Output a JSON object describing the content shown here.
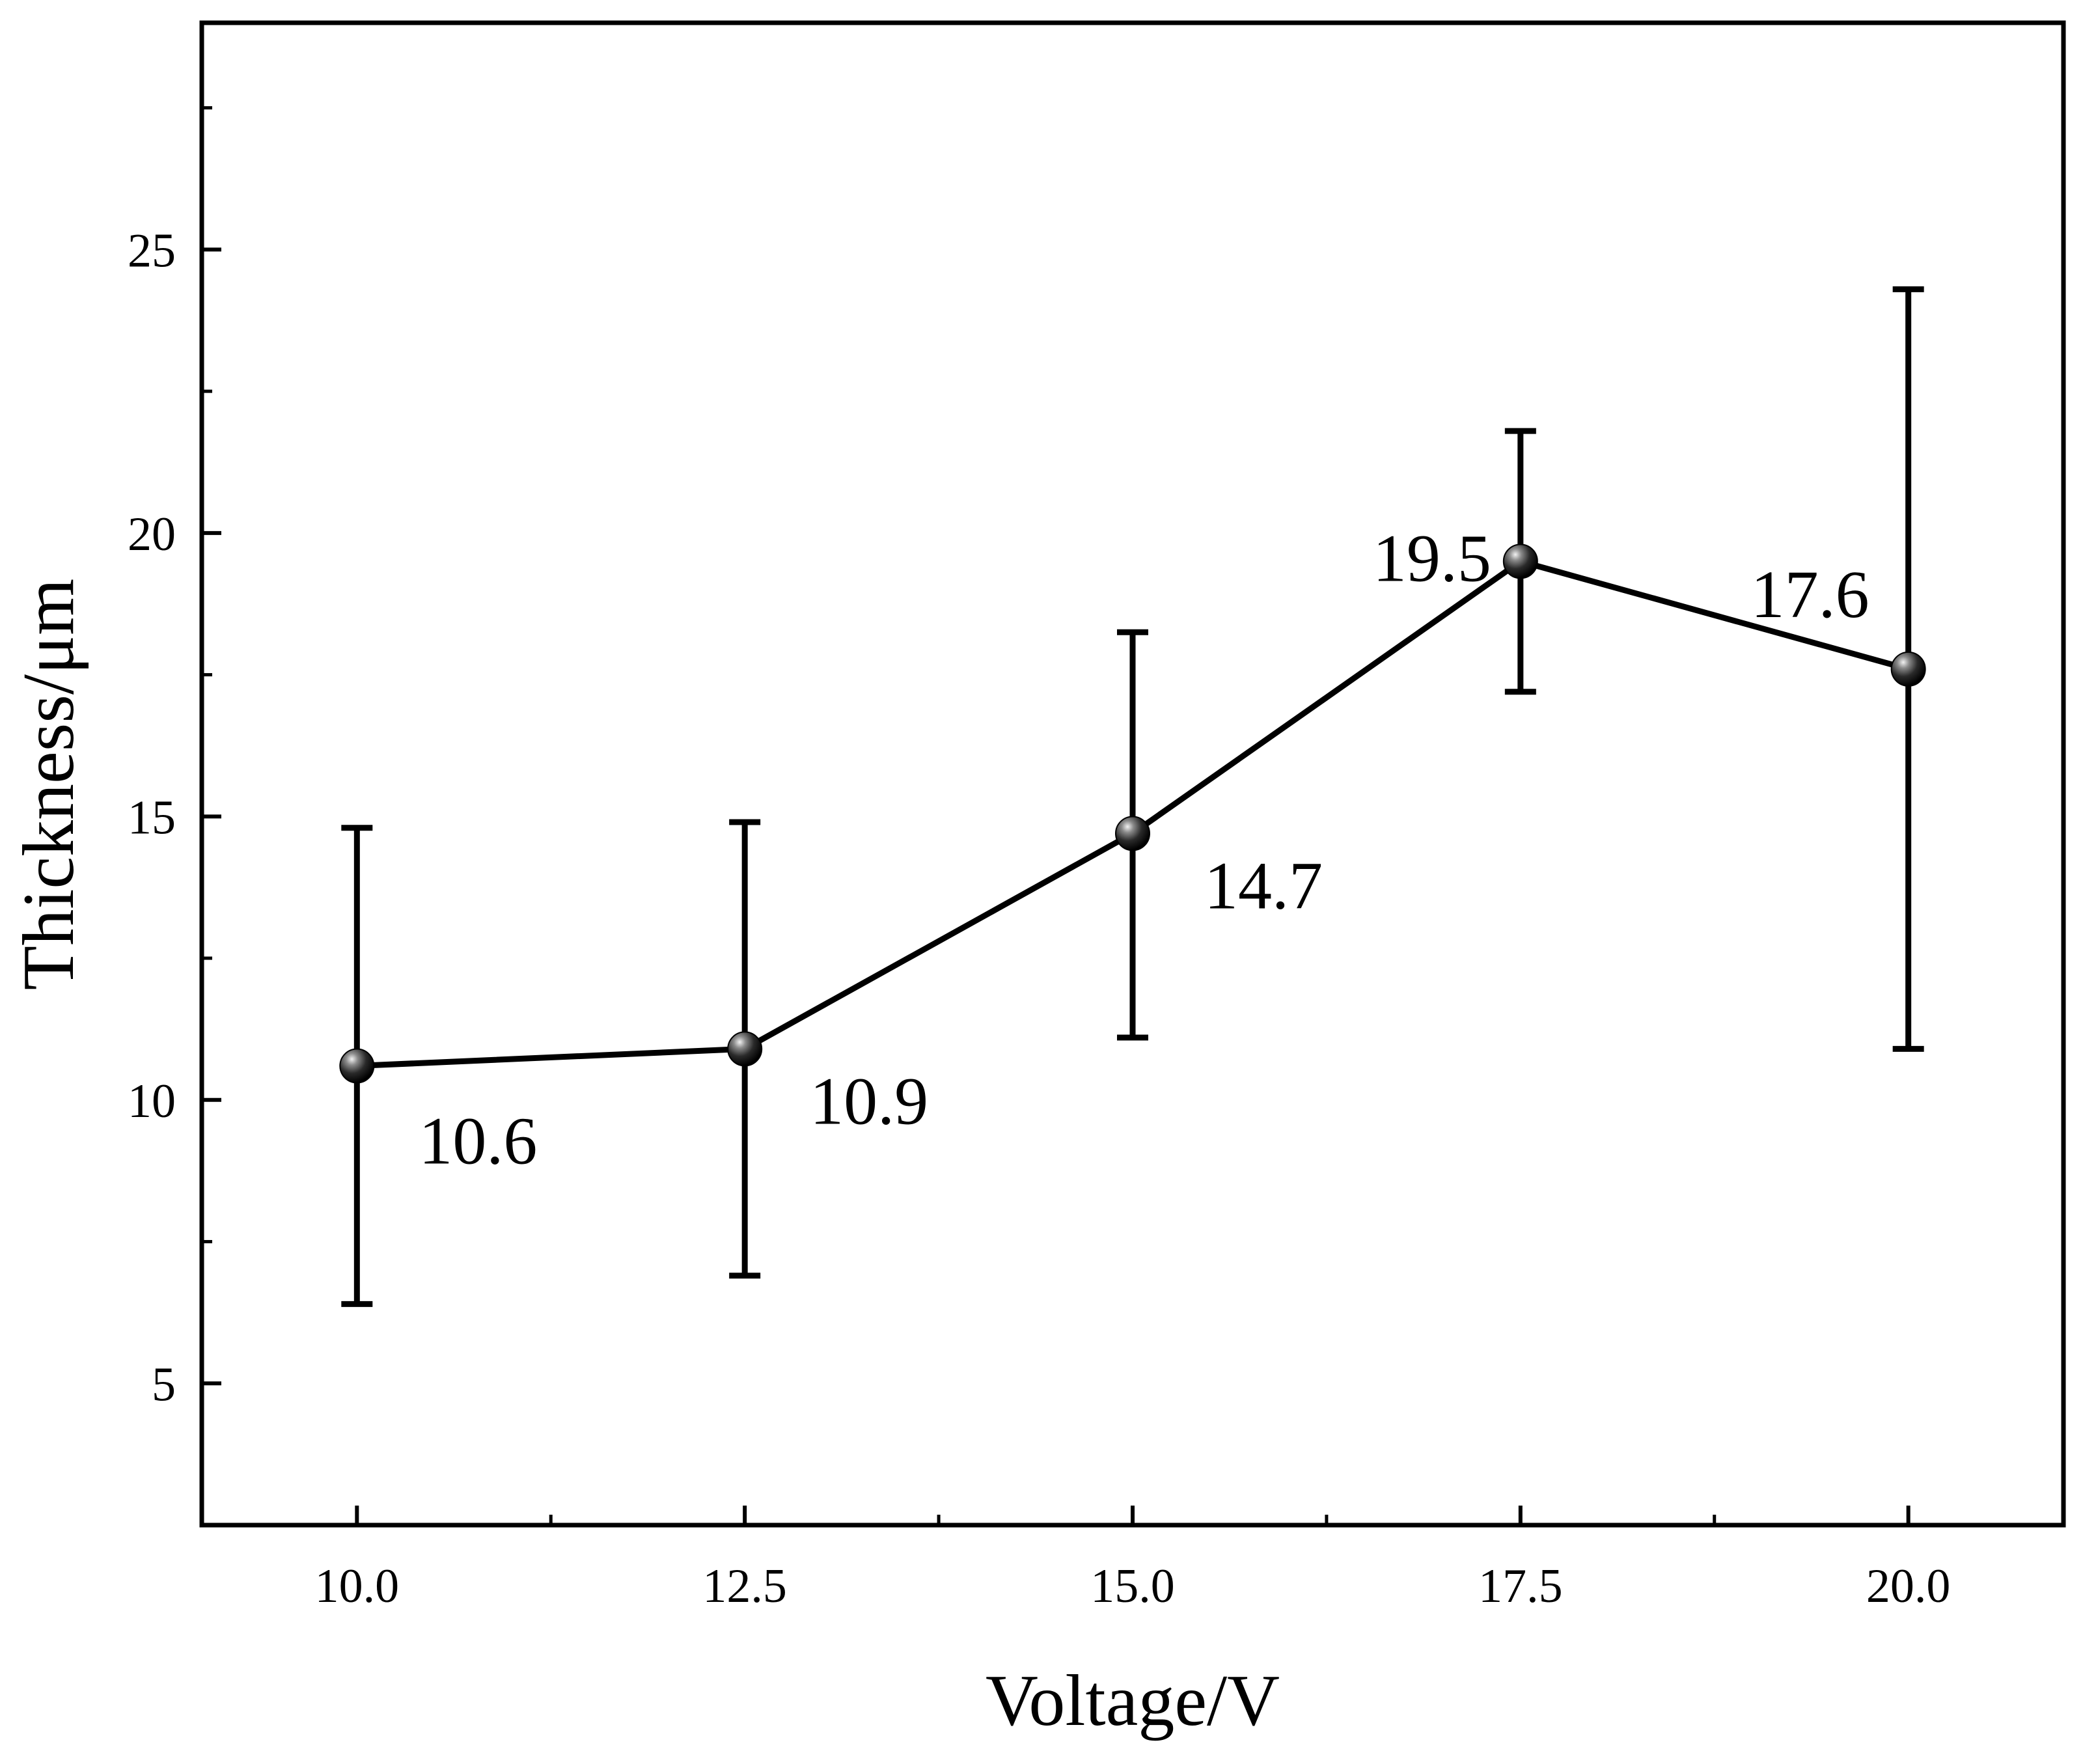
{
  "chart_data": {
    "type": "line",
    "title": "",
    "xlabel": "Voltage/V",
    "ylabel": "Thickness/μm",
    "xlim": [
      9.0,
      21.0
    ],
    "ylim": [
      2.5,
      29.0
    ],
    "x_ticks": [
      10.0,
      12.5,
      15.0,
      17.5,
      20.0
    ],
    "x_tick_labels": [
      "10.0",
      "12.5",
      "15.0",
      "17.5",
      "20.0"
    ],
    "y_ticks": [
      5,
      10,
      15,
      20,
      25
    ],
    "y_tick_labels": [
      "5",
      "10",
      "15",
      "20",
      "25"
    ],
    "grid": false,
    "series": [
      {
        "name": "Thickness",
        "x": [
          10.0,
          12.5,
          15.0,
          17.5,
          20.0
        ],
        "values": [
          10.6,
          10.9,
          14.7,
          19.5,
          17.6
        ],
        "error_low": [
          6.4,
          6.9,
          11.1,
          17.2,
          10.9
        ],
        "error_high": [
          14.8,
          14.9,
          18.25,
          21.8,
          24.3
        ],
        "labels": [
          "10.6",
          "10.9",
          "14.7",
          "19.5",
          "17.6"
        ]
      }
    ],
    "colors": {
      "line": "#000000",
      "marker": "#111111",
      "background": "#ffffff"
    }
  }
}
